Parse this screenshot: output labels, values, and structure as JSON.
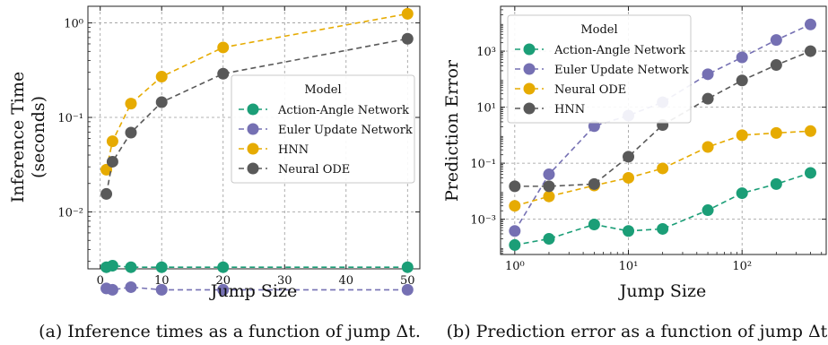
{
  "chart_data": [
    {
      "type": "line",
      "xlabel": "Jump Size",
      "ylabel": "Inference Time",
      "ylabel_line2": "(seconds)",
      "xscale": "linear",
      "yscale": "log",
      "xlim": [
        -2,
        52
      ],
      "ylim": [
        0.0025,
        1.5
      ],
      "x_ticks": [
        0,
        10,
        20,
        30,
        40,
        50
      ],
      "x_tick_labels": [
        "0",
        "10",
        "20",
        "30",
        "40",
        "50"
      ],
      "y_ticks": [
        0.01,
        0.1,
        1
      ],
      "y_tick_labels": [
        "10⁻²",
        "10⁻¹",
        "10⁰"
      ],
      "grid": true,
      "legend_title": "Model",
      "legend_position": "center-right",
      "series": [
        {
          "name": "Action-Angle Network",
          "color": "#1b9e77",
          "x": [
            1,
            2,
            5,
            10,
            20,
            50
          ],
          "y": [
            0.0026,
            0.0027,
            0.0026,
            0.0026,
            0.0026,
            0.0026
          ]
        },
        {
          "name": "Euler Update Network",
          "color": "#7570b3",
          "x": [
            1,
            2,
            5,
            10,
            20,
            50
          ],
          "y": [
            0.00155,
            0.0015,
            0.0016,
            0.0015,
            0.0015,
            0.0015
          ]
        },
        {
          "name": "HNN",
          "color": "#e6ab02",
          "x": [
            1,
            2,
            5,
            10,
            20,
            50
          ],
          "y": [
            0.028,
            0.056,
            0.14,
            0.27,
            0.55,
            1.25
          ]
        },
        {
          "name": "Neural ODE",
          "color": "#595959",
          "x": [
            1,
            2,
            5,
            10,
            20,
            50
          ],
          "y": [
            0.0155,
            0.034,
            0.069,
            0.145,
            0.29,
            0.68
          ]
        }
      ],
      "caption": "(a) Inference times as a function of jump Δt."
    },
    {
      "type": "line",
      "xlabel": "Jump Size",
      "ylabel": "Prediction Error",
      "xscale": "log",
      "yscale": "log",
      "xlim": [
        0.75,
        550
      ],
      "ylim": [
        5.5e-05,
        40000
      ],
      "x_ticks": [
        1,
        10,
        100
      ],
      "x_tick_labels": [
        "10⁰",
        "10¹",
        "10²"
      ],
      "y_ticks": [
        0.001,
        0.1,
        10,
        1000
      ],
      "y_tick_labels": [
        "10⁻³",
        "10⁻¹",
        "10¹",
        "10³"
      ],
      "grid": true,
      "legend_title": "Model",
      "legend_position": "top-left",
      "series": [
        {
          "name": "Action-Angle Network",
          "color": "#1b9e77",
          "x": [
            1,
            2,
            5,
            10,
            20,
            50,
            100,
            200,
            400
          ],
          "y": [
            0.00012,
            0.0002,
            0.00065,
            0.00038,
            0.00045,
            0.0021,
            0.0085,
            0.018,
            0.045
          ]
        },
        {
          "name": "Euler Update Network",
          "color": "#7570b3",
          "x": [
            1,
            2,
            5,
            10,
            20,
            50,
            100,
            200,
            400
          ],
          "y": [
            0.00038,
            0.04,
            2.1,
            5,
            15,
            150,
            600,
            2500,
            9000
          ]
        },
        {
          "name": "Neural ODE",
          "color": "#e6ab02",
          "x": [
            1,
            2,
            5,
            10,
            20,
            50,
            100,
            200,
            400
          ],
          "y": [
            0.003,
            0.0065,
            0.016,
            0.03,
            0.065,
            0.38,
            1.0,
            1.2,
            1.4
          ]
        },
        {
          "name": "HNN",
          "color": "#595959",
          "x": [
            1,
            2,
            5,
            10,
            20,
            50,
            100,
            200,
            400
          ],
          "y": [
            0.015,
            0.015,
            0.018,
            0.17,
            2.3,
            20,
            90,
            320,
            1000
          ]
        }
      ],
      "caption": "(b) Prediction error as a function of jump Δt."
    }
  ]
}
